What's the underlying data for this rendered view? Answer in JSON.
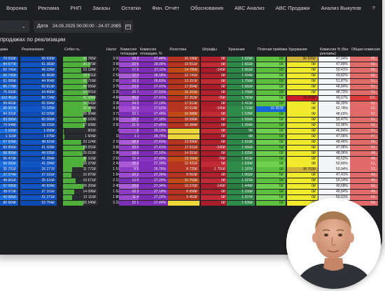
{
  "nav": {
    "items": [
      "Воронка",
      "Реклама",
      "РНП",
      "Заказы",
      "Остатки",
      "Фин. Отчёт",
      "Обоснования",
      "ABC Анализ",
      "ABC Продажи",
      "Анализ Выкупов",
      "?"
    ]
  },
  "toolbar": {
    "date_label": "Дата",
    "date_value": "24.05.2025 00:00:00 - 24.07.2025",
    "clear_glyph": "×"
  },
  "section_title": "продажах по реализации",
  "columns": [
    "одажа",
    "Реализовано",
    "Себес-ть",
    "Налог",
    "Комиссия площадки",
    "Комиссия площадки, %",
    "Логистика",
    "Штрафы",
    "Хранение",
    "Платная приёмка",
    "Удержания",
    "Комиссия % (без рекламы)",
    "Общая комиссия"
  ],
  "colors": {
    "app_bg": "#1e1f23",
    "green_bar": "#4fb13c",
    "purple": "#9b3ec5",
    "red": "#b3232f",
    "yellow": "#f1ea2d",
    "blue": "#1565d8"
  },
  "rows": [
    [
      "70 033₽",
      "50 630₽",
      "30 765₽",
      "3 038₽",
      "19 214₽",
      "27,44%",
      "16 196₽",
      "0₽",
      "1 629₽",
      "0₽",
      "36 605₽",
      "47,64%",
      "65,"
    ],
    [
      "84 677₽",
      "61 383₽",
      "35 379₽",
      "3 683₽",
      "23 585₽",
      "28,05%",
      "19 551₽",
      "0₽",
      "1 662₽",
      "0₽",
      "0₽",
      "47,89%",
      "60,"
    ],
    [
      "62 741₽",
      "46 226₽",
      "23 124₽",
      "2 774₽",
      "17 007₽",
      "27,11%",
      "14 795₽",
      "-140₽",
      "1 661₽",
      "0₽",
      "0₽",
      "50,41%",
      "55,"
    ],
    [
      "60 742₽",
      "41 963₽",
      "33 811₽",
      "2 518₽",
      "17 115₽",
      "28,18%",
      "12 741₽",
      "0₽",
      "1 564₽",
      "0₽",
      "0₽",
      "49,82%",
      "52,"
    ],
    [
      "61 089₽",
      "44 904₽",
      "31 716₽",
      "2 694₽",
      "16 388₽",
      "26,83%",
      "13 157₽",
      "0₽",
      "1 756₽",
      "0₽",
      "0₽",
      "51,87%",
      "51,"
    ],
    [
      "85 779₽",
      "62 813₽",
      "30 556₽",
      "3 769₽",
      "23 508₽",
      "27,41%",
      "17 954₽",
      "0₽",
      "1 582₽",
      "0₽",
      "0₽",
      "46,84%",
      "51,"
    ],
    [
      "75 533₽",
      "54 890₽",
      "32 001₽",
      "3 293₽",
      "20 770₽",
      "27,51%",
      "16 201₽",
      "0₽",
      "1 755₽",
      "0₽",
      "0₽",
      "48,72%",
      "51,"
    ],
    [
      "110 461₽",
      "80 724₽",
      "41 504₽",
      "4 843₽",
      "30 261₽",
      "27,41%",
      "22 353₽",
      "-70₽",
      "1 783₽",
      "0₽",
      "74 974₽",
      "49,07%",
      "116,"
    ],
    [
      "89 663₽",
      "65 994₽",
      "32 543₽",
      "3 960₽",
      "24 383₽",
      "27,19%",
      "17 913₽",
      "0₽",
      "1 410₽",
      "0₽",
      "0₽",
      "46,30%",
      "52,"
    ],
    [
      "96 007₽",
      "70 325₽",
      "36 008₽",
      "4 219₽",
      "26 413₽",
      "27,52%",
      "20 514₽",
      "-140₽",
      "1 715₽",
      "15 357₽",
      "0₽",
      "62,78%",
      "62,"
    ],
    [
      "84 202₽",
      "62 009₽",
      "25 904₽",
      "3 720₽",
      "23 125₽",
      "27,46%",
      "16 998₽",
      "0₽",
      "1 528₽",
      "0₽",
      "0₽",
      "48,69%",
      "52,"
    ],
    [
      "83 065₽",
      "60 066₽",
      "30 033₽",
      "3 603₽",
      "22 700₽",
      "27,33%",
      "18 599₽",
      "0₽",
      "1 592₽",
      "0₽",
      "0₽",
      "50,47%",
      "51,"
    ],
    [
      "79 948₽",
      "58 333₽",
      "27 608₽",
      "3 500₽",
      "21 945₽",
      "27,45%",
      "16 384₽",
      "0₽",
      "1 394₽",
      "0₽",
      "0₽",
      "52,96%",
      "52,"
    ],
    [
      "1 102₽",
      "1 050₽",
      "802₽",
      "63₽",
      "321₽",
      "29,13%",
      "",
      "0₽",
      "0₽",
      "0₽",
      "0₽",
      "46,84%",
      "51,"
    ],
    [
      "1 110₽",
      "1 075₽",
      "1 604₽",
      "196₽",
      "1 116₽",
      "28,75%",
      "",
      "0₽",
      "0₽",
      "0₽",
      "0₽",
      "47,56%",
      "47,"
    ],
    [
      "67 024₽",
      "48 916₽",
      "23 124₽",
      "2 103₽",
      "18 365₽",
      "27,41%",
      "13 596₽",
      "0₽",
      "1 619₽",
      "0₽",
      "0₽",
      "48,46%",
      "50,"
    ],
    [
      "83 956₽",
      "61 039₽",
      "28 052₽",
      "3 662₽",
      "23 013₽",
      "27,41%",
      "17 811₽",
      "-140₽",
      "1 666₽",
      "0₽",
      "0₽",
      "47,96%",
      "52,"
    ],
    [
      "68 959₽",
      "49 035₽",
      "25 010₽",
      "2 965₽",
      "18 690₽",
      "27,10%",
      "14 261₽",
      "0₽",
      "1 620₽",
      "0₽",
      "0₽",
      "48,06%",
      "48,"
    ],
    [
      "56 473₽",
      "41 284₽",
      "30 103₽",
      "2 517₽",
      "15 475₽",
      "27,40%",
      "13 156₽",
      "-70₽",
      "1 553₽",
      "0₽",
      "0₽",
      "49,52%",
      "49,"
    ],
    [
      "56 083₽",
      "41 284₽",
      "26 379₽",
      "2 477₽",
      "15 361₽",
      "27,39%",
      "12 431₽",
      "0₽",
      "1 630₽",
      "0₽",
      "0₽",
      "50,80%",
      "51,"
    ],
    [
      "35 701₽",
      "26 277₽",
      "11 772₽",
      "1 577₽",
      "9 555₽",
      "26,76%",
      "8 725₽",
      "-1 750₽",
      "1 197₽",
      "0₽",
      "38 763₽",
      "50,94%",
      "53,"
    ],
    [
      "37 574₽",
      "27 331₽",
      "10 870₽",
      "1 640₽",
      "10 243₽",
      "27,26%",
      "8 563₽",
      "0₽",
      "1 062₽",
      "0₽",
      "0₽",
      "47,41%",
      "49,"
    ],
    [
      "48 061₽",
      "35 516₽",
      "16 571₽",
      "2 131₽",
      "13 072₽",
      "27,20%",
      "10 753₽",
      "0₽",
      "1 327₽",
      "0₽",
      "0₽",
      "50,14%",
      "49,"
    ],
    [
      "57 095₽",
      "40 834₽",
      "26 209₽",
      "2 450₽",
      "15 610₽",
      "27,34%",
      "13 276₽",
      "-140₽",
      "1 448₽",
      "0₽",
      "0₽",
      "49,68%",
      "50,"
    ],
    [
      "38 073₽",
      "27 101₽",
      "14 096₽",
      "1 627₽",
      "10 353₽",
      "27,19%",
      "8 658₽",
      "0₽",
      "1 155₽",
      "0₽",
      "0₽",
      "49,84%",
      "49,"
    ],
    [
      "42 065₽",
      "31 271₽",
      "12 110₽",
      "1 808₽",
      "11 452₽",
      "27,22%",
      "9 453₽",
      "0₽",
      "1 207₽",
      "0₽",
      "0₽",
      "50,01%",
      "50,"
    ],
    [
      "80 564₽",
      "53 754₽",
      "26 540₽",
      "3 225₽",
      "22 105₽",
      "27,44%",
      "",
      "0₽",
      "1 626₽",
      "0₽",
      "0₽",
      "48,26%",
      "54,"
    ]
  ]
}
